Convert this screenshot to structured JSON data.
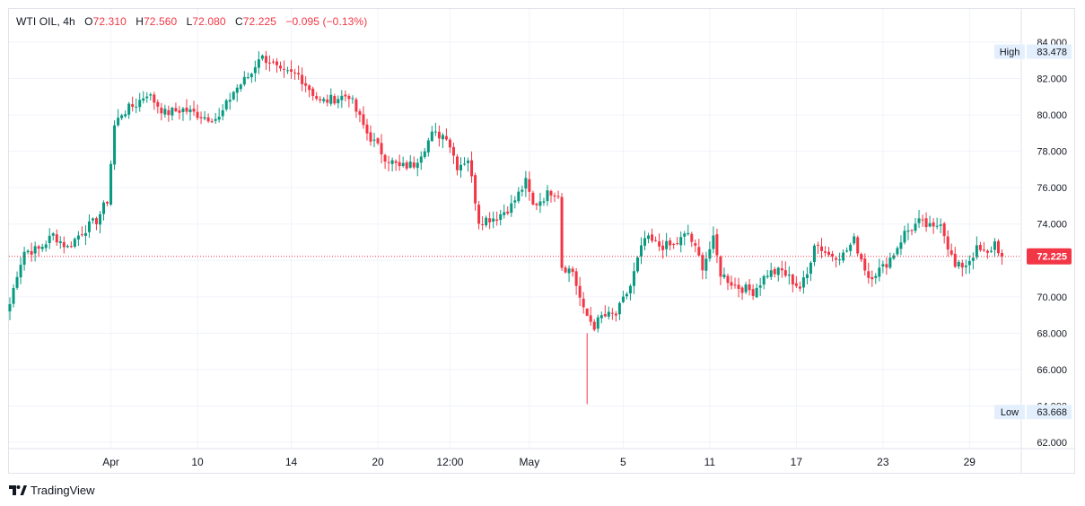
{
  "legend": {
    "symbol": "WTI OIL",
    "interval": "4h",
    "open_label": "O",
    "open": "72.310",
    "high_label": "H",
    "high": "72.560",
    "low_label": "L",
    "low": "72.080",
    "close_label": "C",
    "close": "72.225",
    "change": "−0.095 (−0.13%)"
  },
  "price_axis": {
    "ticks": [
      "84.000",
      "82.000",
      "80.000",
      "78.000",
      "76.000",
      "74.000",
      "72.000",
      "70.000",
      "68.000",
      "66.000",
      "64.000",
      "62.000"
    ]
  },
  "time_axis": {
    "labels": [
      "Apr",
      "10",
      "14",
      "20",
      "12:00",
      "May",
      "5",
      "11",
      "17",
      "23",
      "29"
    ]
  },
  "badges": {
    "high_label": "High",
    "high_value": "83.478",
    "low_label": "Low",
    "low_value": "63.668",
    "last_price": "72.225"
  },
  "branding": {
    "name": "TradingView"
  },
  "colors": {
    "up": "#089981",
    "down": "#f23645",
    "grid": "#f0f3fa",
    "badge_bg": "#e3effd"
  },
  "chart_data": {
    "type": "candlestick",
    "title": "",
    "ylim": [
      61.5,
      84.2
    ],
    "y_ticks": [
      84,
      82,
      80,
      78,
      76,
      74,
      72,
      70,
      68,
      66,
      64,
      62
    ],
    "x_tick_labels": [
      "Apr",
      "10",
      "14",
      "20",
      "12:00",
      "May",
      "5",
      "11",
      "17",
      "23",
      "29"
    ],
    "x_tick_bar_index": [
      28,
      52,
      78,
      102,
      122,
      144,
      170,
      194,
      218,
      242,
      266
    ],
    "last_price": 72.225,
    "series_high": 83.478,
    "series_low": 63.668,
    "anchors": [
      [
        0,
        69.6
      ],
      [
        2,
        71.3
      ],
      [
        4,
        72.5
      ],
      [
        8,
        72.6
      ],
      [
        12,
        73.4
      ],
      [
        16,
        72.7
      ],
      [
        20,
        73.6
      ],
      [
        24,
        74.2
      ],
      [
        27,
        75.3
      ],
      [
        29,
        79.4
      ],
      [
        31,
        80.1
      ],
      [
        35,
        80.6
      ],
      [
        38,
        81.2
      ],
      [
        43,
        80.1
      ],
      [
        48,
        80.3
      ],
      [
        54,
        79.9
      ],
      [
        58,
        79.8
      ],
      [
        62,
        81.3
      ],
      [
        67,
        82.3
      ],
      [
        69,
        83.2
      ],
      [
        72,
        83.0
      ],
      [
        75,
        82.3
      ],
      [
        80,
        82.2
      ],
      [
        86,
        80.7
      ],
      [
        90,
        80.9
      ],
      [
        94,
        81.1
      ],
      [
        96,
        80.2
      ],
      [
        99,
        79.0
      ],
      [
        104,
        77.7
      ],
      [
        108,
        77.1
      ],
      [
        112,
        77.3
      ],
      [
        117,
        78.9
      ],
      [
        121,
        78.9
      ],
      [
        124,
        77.2
      ],
      [
        127,
        77.6
      ],
      [
        130,
        74.2
      ],
      [
        135,
        74.4
      ],
      [
        139,
        75.0
      ],
      [
        143,
        76.3
      ],
      [
        145,
        75.0
      ],
      [
        150,
        75.8
      ],
      [
        152,
        75.7
      ],
      [
        153,
        71.7
      ],
      [
        156,
        71.4
      ],
      [
        159,
        69.2
      ],
      [
        162,
        68.4
      ],
      [
        164,
        68.9
      ],
      [
        168,
        69.0
      ],
      [
        172,
        70.6
      ],
      [
        174,
        72.0
      ],
      [
        176,
        73.2
      ],
      [
        180,
        72.8
      ],
      [
        184,
        72.8
      ],
      [
        188,
        73.5
      ],
      [
        192,
        71.7
      ],
      [
        195,
        73.1
      ],
      [
        197,
        71.3
      ],
      [
        201,
        70.6
      ],
      [
        206,
        70.3
      ],
      [
        210,
        71.3
      ],
      [
        214,
        71.4
      ],
      [
        219,
        70.5
      ],
      [
        221,
        71.2
      ],
      [
        223,
        73.0
      ],
      [
        227,
        72.3
      ],
      [
        231,
        72.3
      ],
      [
        234,
        73.1
      ],
      [
        238,
        71.1
      ],
      [
        242,
        71.6
      ],
      [
        245,
        72.4
      ],
      [
        248,
        73.5
      ],
      [
        252,
        74.1
      ],
      [
        256,
        73.7
      ],
      [
        258,
        74.2
      ],
      [
        260,
        72.8
      ],
      [
        262,
        71.6
      ],
      [
        265,
        71.8
      ],
      [
        268,
        72.6
      ],
      [
        271,
        72.3
      ],
      [
        273,
        73.0
      ],
      [
        275,
        72.2
      ]
    ],
    "overrides": [
      [
        160,
        64.1,
        68.0
      ]
    ]
  }
}
